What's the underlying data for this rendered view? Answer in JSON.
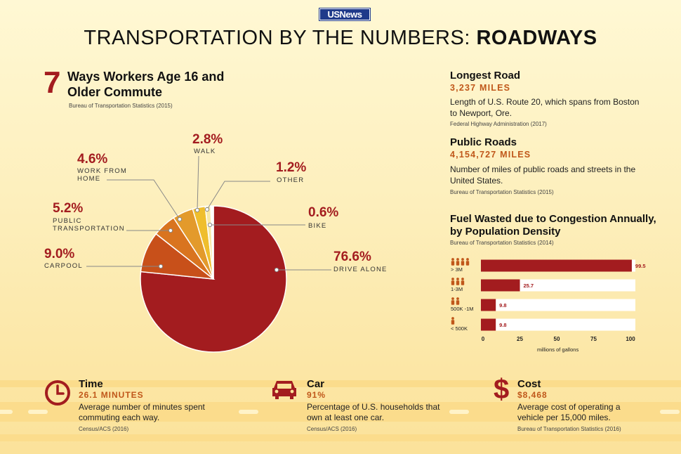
{
  "header": {
    "logo": "USNews",
    "title_prefix": "TRANSPORTATION BY THE NUMBERS: ",
    "title_strong": "ROADWAYS"
  },
  "commute": {
    "number": "7",
    "title": "Ways Workers Age 16 and Older Commute",
    "source": "Bureau of Transportation Statistics (2015)"
  },
  "colors": {
    "dark_red": "#a31c1f",
    "orange": "#c0571a",
    "pie": [
      "#a31c1f",
      "#c8501a",
      "#d9741f",
      "#e39a2b",
      "#efbe2d",
      "#f8e9a6",
      "#ffffff"
    ]
  },
  "chart_data": [
    {
      "type": "pie",
      "slices": [
        {
          "label": "DRIVE ALONE",
          "pct_text": "76.6%",
          "value": 76.6
        },
        {
          "label": "CARPOOL",
          "pct_text": "9.0%",
          "value": 9.0
        },
        {
          "label": "PUBLIC TRANSPORTATION",
          "pct_text": "5.2%",
          "value": 5.2
        },
        {
          "label": "WORK FROM HOME",
          "pct_text": "4.6%",
          "value": 4.6
        },
        {
          "label": "WALK",
          "pct_text": "2.8%",
          "value": 2.8
        },
        {
          "label": "OTHER",
          "pct_text": "1.2%",
          "value": 1.2
        },
        {
          "label": "BIKE",
          "pct_text": "0.6%",
          "value": 0.6
        }
      ]
    },
    {
      "type": "bar",
      "title": "Fuel Wasted due to Congestion Annually, by Population Density",
      "source": "Bureau of Transportation Statistics (2014)",
      "categories": [
        "> 3M",
        "1-3M",
        "500K -1M",
        "< 500K"
      ],
      "values": [
        99.5,
        25.7,
        9.8,
        9.8
      ],
      "value_labels": [
        "99.5",
        "25.7",
        "9.8",
        "9.8"
      ],
      "people_icons": [
        4,
        3,
        2,
        1
      ],
      "xlim": [
        0,
        100
      ],
      "xticks": [
        "0",
        "25",
        "50",
        "75",
        "100"
      ],
      "xlabel": "millions of gallons"
    }
  ],
  "facts": [
    {
      "title": "Longest Road",
      "value": "3,237 MILES",
      "desc": "Length of U.S. Route 20, which spans from Boston to Newport, Ore.",
      "source": "Federal Highway Administration (2017)"
    },
    {
      "title": "Public Roads",
      "value": "4,154,727 MILES",
      "desc": "Number of miles of public roads and streets in the United States.",
      "source": "Bureau of Transportation Statistics (2015)"
    }
  ],
  "bottom": [
    {
      "icon": "clock-icon",
      "title": "Time",
      "value": "26.1 MINUTES",
      "desc": "Average number of minutes spent commuting each way.",
      "source": "Census/ACS (2016)"
    },
    {
      "icon": "car-icon",
      "title": "Car",
      "value": "91%",
      "desc": "Percentage of U.S. households that own at least one car.",
      "source": "Census/ACS (2016)"
    },
    {
      "icon": "dollar-icon",
      "title": "Cost",
      "value": "$8,468",
      "desc": "Average cost of operating a vehicle per 15,000 miles.",
      "source": "Bureau of Transportation Statistics (2016)"
    }
  ]
}
